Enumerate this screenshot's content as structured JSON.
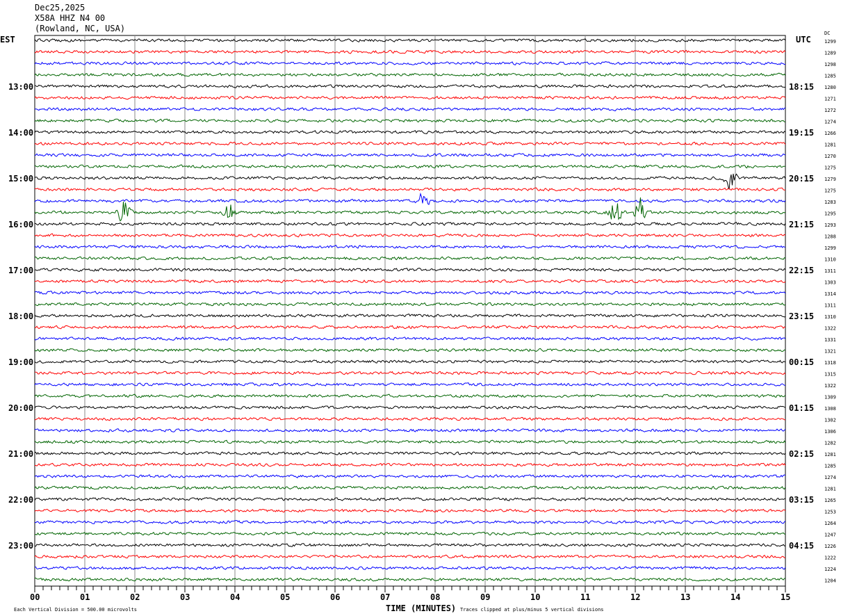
{
  "header": {
    "date": "Dec25,2025",
    "station": "X58A HHZ N4 00",
    "location": "(Rowland, NC, USA)"
  },
  "chart_data": {
    "type": "line",
    "title": "X58A HHZ N4 00 helicorder",
    "xlabel": "TIME (MINUTES)",
    "xlim": [
      0,
      15
    ],
    "x_ticks": [
      "00",
      "01",
      "02",
      "03",
      "04",
      "05",
      "06",
      "07",
      "08",
      "09",
      "10",
      "11",
      "12",
      "13",
      "14",
      "15"
    ],
    "left_axis_label": "EST",
    "right_axis_label": "UTC",
    "dc_label": "DC",
    "est_hours": [
      "13:00",
      "14:00",
      "15:00",
      "16:00",
      "17:00",
      "18:00",
      "19:00",
      "20:00",
      "21:00",
      "22:00",
      "23:00"
    ],
    "utc_hours": [
      "18:15",
      "19:15",
      "20:15",
      "21:15",
      "22:15",
      "23:15",
      "00:15",
      "01:15",
      "02:15",
      "03:15",
      "04:15"
    ],
    "dc_offsets": [
      1299,
      1289,
      1298,
      1285,
      1280,
      1271,
      1272,
      1274,
      1266,
      1281,
      1270,
      1275,
      1279,
      1275,
      1283,
      1295,
      1293,
      1288,
      1299,
      1310,
      1311,
      1303,
      1314,
      1311,
      1310,
      1322,
      1331,
      1321,
      1318,
      1315,
      1322,
      1309,
      1308,
      1302,
      1306,
      1282,
      1281,
      1285,
      1274,
      1281,
      1265,
      1253,
      1264,
      1247,
      1226,
      1222,
      1224,
      1204
    ],
    "trace_colors": [
      "#000000",
      "#ff0000",
      "#0000ff",
      "#006400"
    ],
    "events": [
      {
        "trace": 12,
        "minute": 13.9,
        "amplitude": 2.2
      },
      {
        "trace": 14,
        "minute": 7.75,
        "amplitude": 1.8
      },
      {
        "trace": 15,
        "minute": 1.8,
        "amplitude": 3.5
      },
      {
        "trace": 15,
        "minute": 3.9,
        "amplitude": 2.0
      },
      {
        "trace": 15,
        "minute": 11.6,
        "amplitude": 3.0
      },
      {
        "trace": 15,
        "minute": 12.1,
        "amplitude": 3.0
      }
    ],
    "footer_left": "Each Vertical Division =  500.00 microvolts",
    "footer_right": "Traces clipped at plus/minus 5 vertical divisions"
  }
}
